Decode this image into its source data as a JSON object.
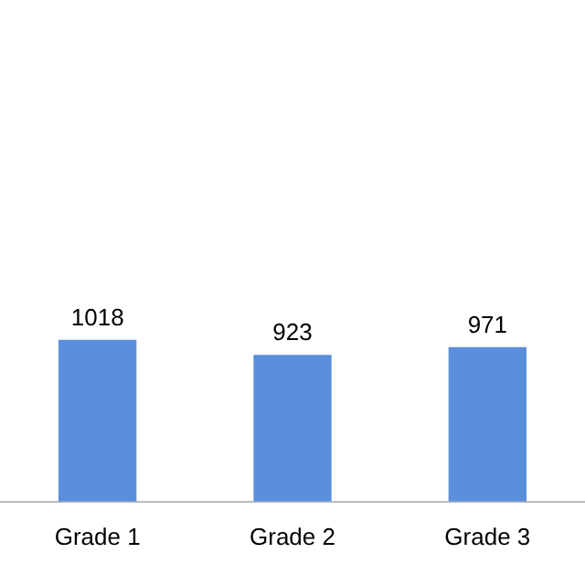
{
  "chart_data": {
    "type": "bar",
    "categories": [
      "Grade 1",
      "Grade 2",
      "Grade 3"
    ],
    "values": [
      1018,
      923,
      971
    ],
    "color": "#5b8fdc",
    "data_labels": true,
    "tick_labels": "x",
    "grid": false,
    "legend": false
  }
}
